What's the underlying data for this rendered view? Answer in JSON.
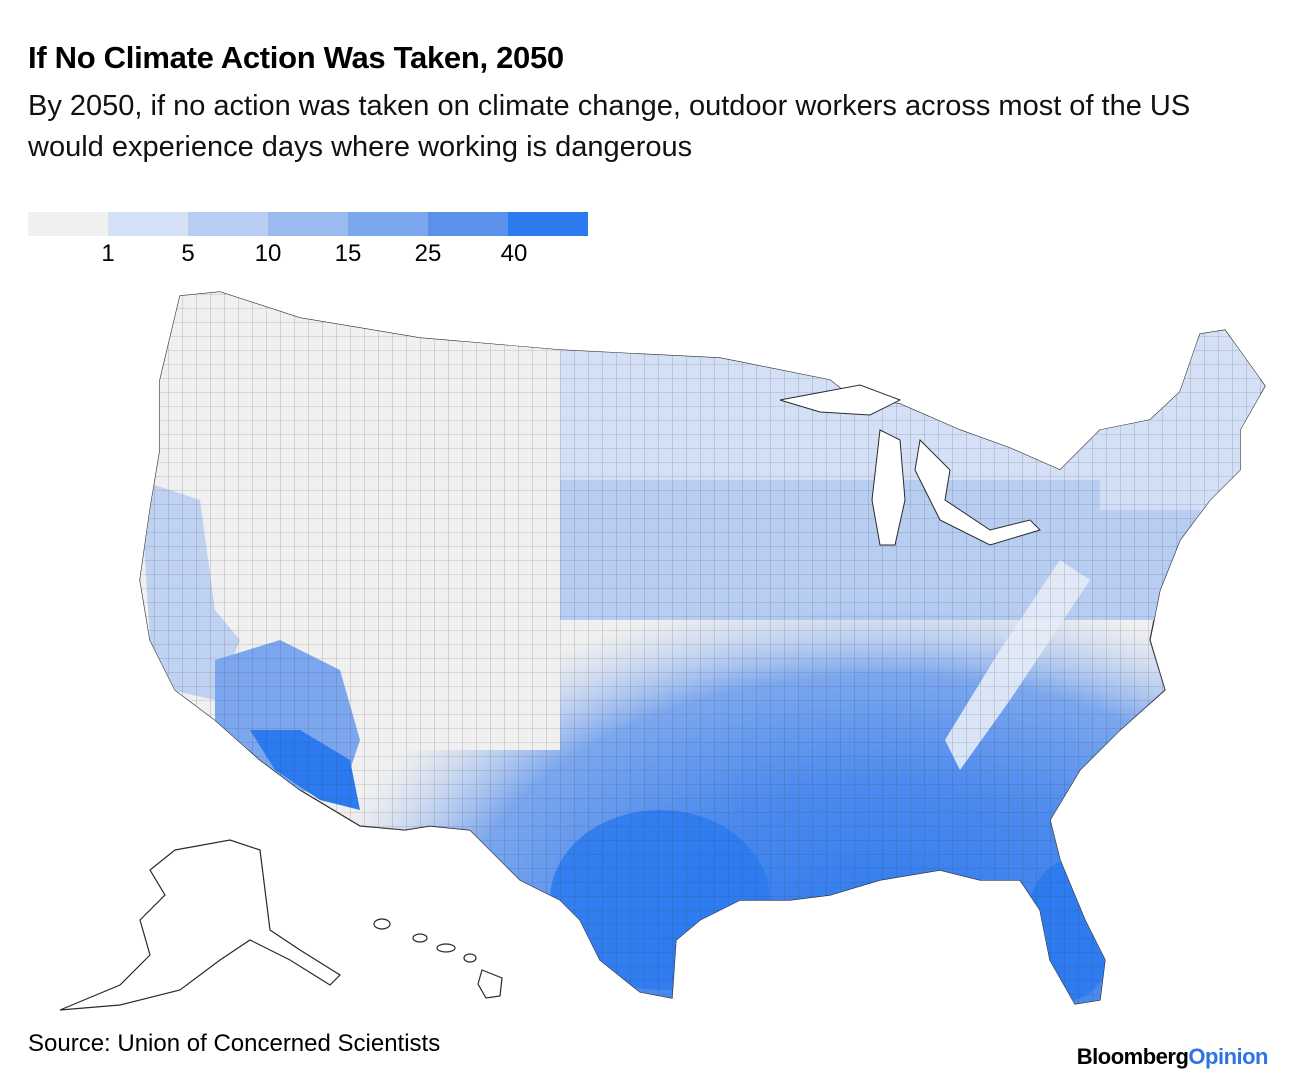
{
  "header": {
    "title": "If No Climate Action Was Taken, 2050",
    "subtitle": "By 2050, if no action was taken on climate change, outdoor workers across most of the US would experience days where working is dangerous"
  },
  "legend": {
    "ticks": [
      "1",
      "5",
      "10",
      "15",
      "25",
      "40"
    ],
    "colors": [
      "#f0f0f0",
      "#d4e0f6",
      "#b7cdf2",
      "#9bbaf0",
      "#7ca7ee",
      "#5a91ed",
      "#2c7af0"
    ]
  },
  "footer": {
    "source": "Source: Union of Concerned Scientists",
    "logo_brand": "Bloomberg",
    "logo_section": "Opinion"
  }
}
